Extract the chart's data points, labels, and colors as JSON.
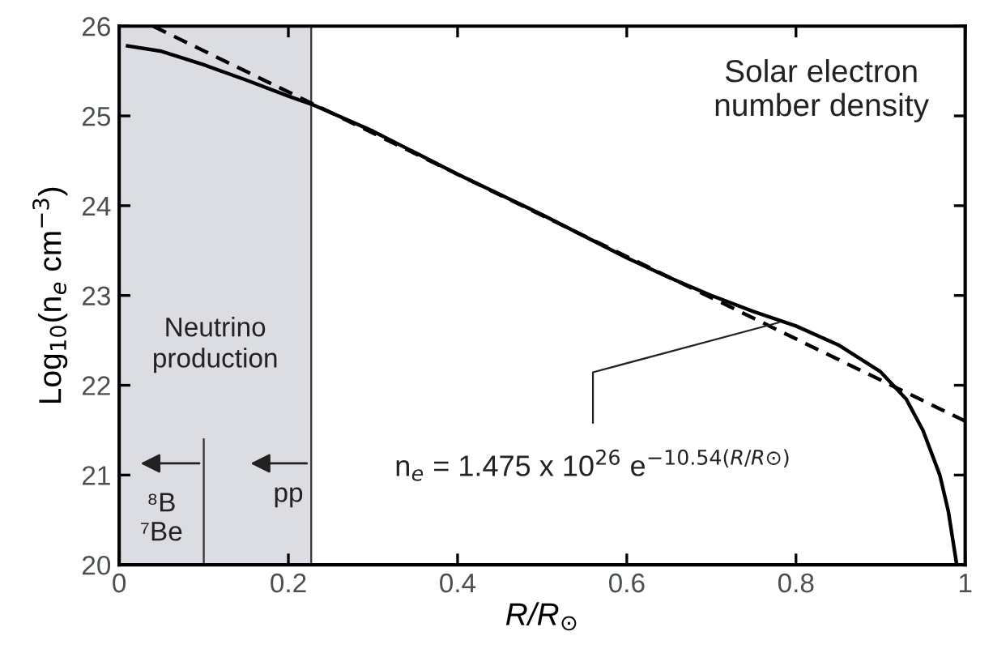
{
  "chart_data": {
    "type": "line",
    "xlabel": "R/R$_{⊙}$",
    "ylabel": "Log$_{10}$(n$_{e}$ cm$^{−3}$)",
    "xlim": [
      0,
      1
    ],
    "ylim": [
      20,
      26
    ],
    "xticks": [
      0,
      {
        "value": 0.2,
        "label": "0.2"
      },
      {
        "value": 0.4,
        "label": "0.4"
      },
      {
        "value": 0.6,
        "label": "0.6"
      },
      {
        "value": 0.8,
        "label": "0.8"
      },
      1
    ],
    "yticks": [
      20,
      21,
      22,
      23,
      24,
      25,
      26
    ],
    "grid": false,
    "marker": "none",
    "series": [
      {
        "color": "#000000",
        "line_style": "solid",
        "x": [
          0.01,
          0.05,
          0.1,
          0.15,
          0.2,
          0.23,
          0.3,
          0.4,
          0.5,
          0.6,
          0.65,
          0.7,
          0.75,
          0.8,
          0.85,
          0.9,
          0.93,
          0.95,
          0.97,
          0.98,
          0.99
        ],
        "values": [
          25.78,
          25.72,
          25.57,
          25.4,
          25.22,
          25.12,
          24.83,
          24.35,
          23.9,
          23.42,
          23.2,
          23.0,
          22.82,
          22.66,
          22.45,
          22.15,
          21.85,
          21.5,
          21.0,
          20.6,
          20.0
        ]
      },
      {
        "color": "#000000",
        "line_style": "dashed",
        "x": [
          0.04,
          1
        ],
        "values": [
          26.0,
          21.6
        ]
      }
    ],
    "bands": [
      {
        "axis": "x",
        "from": 0,
        "to": 0.227,
        "label": "Neutrino\nproduction",
        "color": "#dcdde2"
      }
    ],
    "annotations": [
      "Solar electron\nnumber density",
      "⁸B\n⁷Be",
      "pp",
      {
        "text": "n$_{e}$ = 1.475 x 10$^{26}$ e$^{−10.54(R/R⊙)}$",
        "x": 0.78,
        "y": 22.7
      }
    ]
  }
}
